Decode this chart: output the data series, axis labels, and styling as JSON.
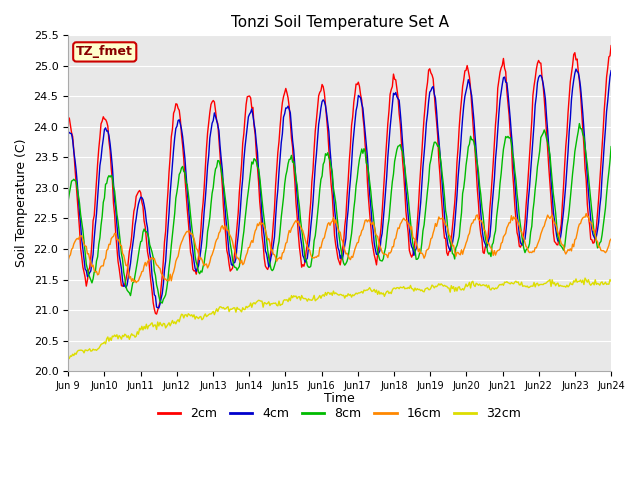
{
  "title": "Tonzi Soil Temperature Set A",
  "xlabel": "Time",
  "ylabel": "Soil Temperature (C)",
  "ylim": [
    20.0,
    25.5
  ],
  "yticks": [
    20.0,
    20.5,
    21.0,
    21.5,
    22.0,
    22.5,
    23.0,
    23.5,
    24.0,
    24.5,
    25.0,
    25.5
  ],
  "bg_color": "#e8e8e8",
  "fig_color": "#ffffff",
  "label_box_text": "TZ_fmet",
  "label_box_bg": "#ffffcc",
  "label_box_edge": "#cc0000",
  "series": [
    {
      "label": "2cm",
      "color": "#ff0000"
    },
    {
      "label": "4cm",
      "color": "#0000cc"
    },
    {
      "label": "8cm",
      "color": "#00bb00"
    },
    {
      "label": "16cm",
      "color": "#ff8800"
    },
    {
      "label": "32cm",
      "color": "#dddd00"
    }
  ],
  "xtick_labels": [
    "Jun 9",
    "Jun 10",
    "Jun 11",
    "Jun 12",
    "Jun 13",
    "Jun 14",
    "Jun 15",
    "Jun 16",
    "Jun 17",
    "Jun 18",
    "Jun 19",
    "Jun 20",
    "Jun 21",
    "Jun 22",
    "Jun 23",
    "Jun 24"
  ],
  "n_points": 480
}
